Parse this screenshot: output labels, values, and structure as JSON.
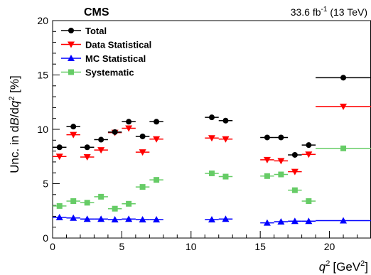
{
  "chart_data": {
    "type": "scatter",
    "title": "",
    "header_left": "CMS",
    "header_right_prefix": "33.6 fb",
    "header_right_sup": "-1",
    "header_right_suffix": " (13 TeV)",
    "xlabel_main": "q",
    "xlabel_sup": "2",
    "xlabel_unit": "[GeV",
    "xlabel_unit_sup": "2",
    "xlabel_close": "]",
    "ylabel": "Unc. in dB/dq² [%]",
    "xlim": [
      0,
      23
    ],
    "ylim": [
      0,
      20
    ],
    "x_ticks_major": [
      0,
      5,
      10,
      15,
      20
    ],
    "x_tick_labels": [
      "0",
      "5",
      "10",
      "15",
      "20"
    ],
    "y_ticks_major": [
      0,
      5,
      10,
      15,
      20
    ],
    "y_tick_labels": [
      "0",
      "5",
      "10",
      "15",
      "20"
    ],
    "bins": [
      [
        0,
        1
      ],
      [
        1,
        2
      ],
      [
        2,
        3
      ],
      [
        3,
        4
      ],
      [
        4,
        5
      ],
      [
        5,
        6
      ],
      [
        6,
        7
      ],
      [
        7,
        8
      ],
      [
        11,
        12
      ],
      [
        12,
        13
      ],
      [
        15,
        16
      ],
      [
        16,
        17
      ],
      [
        17,
        18
      ],
      [
        18,
        19
      ],
      [
        19,
        23
      ]
    ],
    "legend_position": "top-left",
    "series": [
      {
        "name": "Total",
        "color": "#000000",
        "marker": "circle",
        "values": [
          8.35,
          10.25,
          8.35,
          9.05,
          9.75,
          10.7,
          9.35,
          10.7,
          11.1,
          10.8,
          9.25,
          9.25,
          7.65,
          8.55,
          14.75
        ]
      },
      {
        "name": "Data Statistical",
        "color": "#ff0000",
        "marker": "triangle-down",
        "values": [
          7.5,
          9.5,
          7.45,
          8.1,
          9.7,
          10.1,
          7.9,
          9.1,
          9.2,
          9.1,
          7.2,
          7.1,
          6.1,
          7.7,
          12.1
        ]
      },
      {
        "name": "MC Statistical",
        "color": "#0000ff",
        "marker": "triangle-up",
        "values": [
          1.9,
          1.85,
          1.75,
          1.75,
          1.7,
          1.75,
          1.7,
          1.7,
          1.7,
          1.75,
          1.4,
          1.5,
          1.55,
          1.55,
          1.6
        ]
      },
      {
        "name": "Systematic",
        "color": "#66cc66",
        "marker": "square",
        "values": [
          2.95,
          3.4,
          3.25,
          3.8,
          2.7,
          3.15,
          4.7,
          5.35,
          5.95,
          5.65,
          5.7,
          5.85,
          4.4,
          3.4,
          8.25
        ]
      }
    ]
  }
}
